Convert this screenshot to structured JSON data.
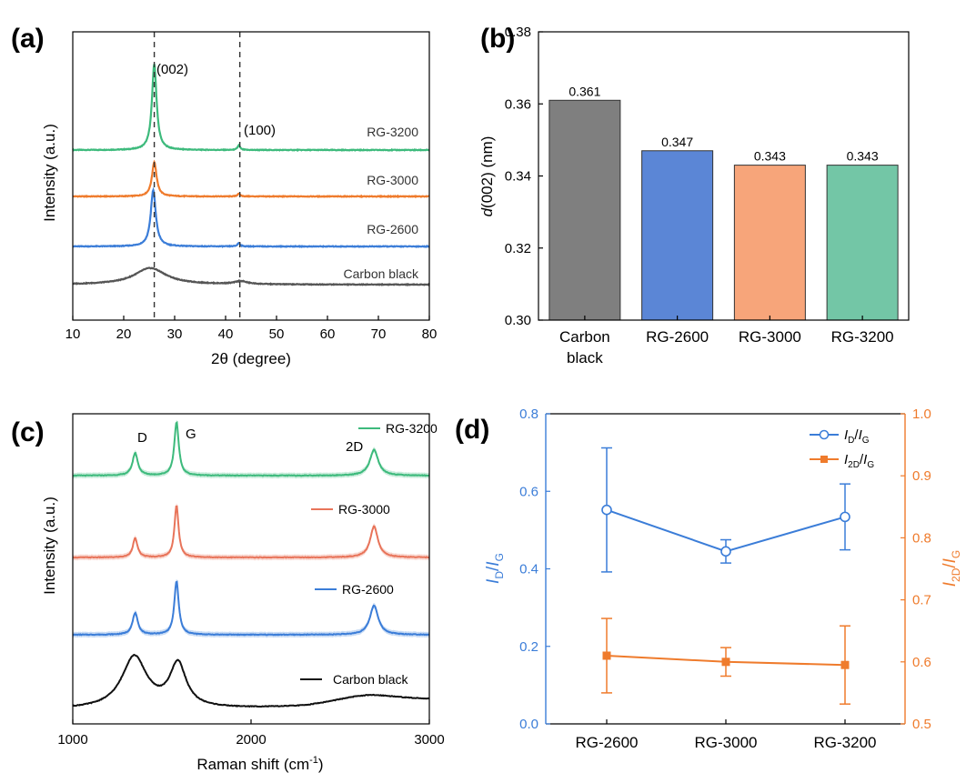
{
  "panels": {
    "a": {
      "label": "(a)",
      "chart_data": {
        "type": "line",
        "xlabel": "2θ (degree)",
        "ylabel": "Intensity (a.u.)",
        "xlim": [
          10,
          80
        ],
        "xticks": [
          10,
          20,
          30,
          40,
          50,
          60,
          70,
          80
        ],
        "reference_lines_x": [
          26.0,
          42.8
        ],
        "annotations": [
          {
            "text": "(002)",
            "x": 26.0
          },
          {
            "text": "(100)",
            "x": 42.8
          }
        ],
        "series": [
          {
            "name": "RG-3200",
            "color": "#3dba7c",
            "offset": 3.0,
            "peaks": [
              {
                "x": 26.0,
                "h": 1.45,
                "w": 0.55
              },
              {
                "x": 42.6,
                "h": 0.08,
                "w": 0.3
              }
            ]
          },
          {
            "name": "RG-3000",
            "color": "#ef7b2c",
            "offset": 2.0,
            "peaks": [
              {
                "x": 26.0,
                "h": 0.58,
                "w": 0.55
              },
              {
                "x": 42.6,
                "h": 0.05,
                "w": 0.3
              }
            ]
          },
          {
            "name": "RG-2600",
            "color": "#3b7dd8",
            "offset": 1.0,
            "peaks": [
              {
                "x": 25.8,
                "h": 0.95,
                "w": 0.6
              },
              {
                "x": 42.6,
                "h": 0.06,
                "w": 0.3
              }
            ]
          },
          {
            "name": "Carbon black",
            "color": "#555555",
            "offset": 0.0,
            "peaks": [
              {
                "x": 25.2,
                "h": 0.28,
                "w": 3.8
              },
              {
                "x": 43.0,
                "h": 0.05,
                "w": 1.5
              }
            ]
          }
        ]
      }
    },
    "b": {
      "label": "(b)",
      "chart_data": {
        "type": "bar",
        "categories": [
          "Carbon black",
          "RG-2600",
          "RG-3000",
          "RG-3200"
        ],
        "category_lines": [
          [
            "Carbon",
            "black"
          ],
          [
            "RG-2600"
          ],
          [
            "RG-3000"
          ],
          [
            "RG-3200"
          ]
        ],
        "values": [
          0.361,
          0.347,
          0.343,
          0.343
        ],
        "value_labels": [
          "0.361",
          "0.347",
          "0.343",
          "0.343"
        ],
        "colors": [
          "#7f7f7f",
          "#5b86d6",
          "#f7a57a",
          "#73c6a6"
        ],
        "ylabel_italic": "d",
        "ylabel_rest": "(002) (nm)",
        "ylim": [
          0.3,
          0.38
        ],
        "yticks": [
          0.3,
          0.32,
          0.34,
          0.36,
          0.38
        ],
        "ytick_labels": [
          "0.30",
          "0.32",
          "0.34",
          "0.36",
          "0.38"
        ]
      }
    },
    "c": {
      "label": "(c)",
      "chart_data": {
        "type": "line",
        "xlabel_main": "Raman shift (cm",
        "xlabel_sup": "-1",
        "xlabel_end": ")",
        "ylabel": "Intensity (a.u.)",
        "xlim": [
          1000,
          3000
        ],
        "xticks": [
          1000,
          2000,
          3000
        ],
        "annotations": [
          {
            "text": "D",
            "x": 1350
          },
          {
            "text": "G",
            "x": 1580
          },
          {
            "text": "2D",
            "x": 2690
          }
        ],
        "series": [
          {
            "name": "RG-3200",
            "color": "#3dba7c",
            "offset": 3.05,
            "peaks": [
              {
                "x": 1350,
                "h": 0.26,
                "w": 18
              },
              {
                "x": 1582,
                "h": 0.62,
                "w": 15
              },
              {
                "x": 2690,
                "h": 0.3,
                "w": 28
              }
            ]
          },
          {
            "name": "RG-3000",
            "color": "#e8745a",
            "offset": 2.05,
            "peaks": [
              {
                "x": 1350,
                "h": 0.22,
                "w": 16
              },
              {
                "x": 1582,
                "h": 0.6,
                "w": 14
              },
              {
                "x": 2690,
                "h": 0.36,
                "w": 26
              }
            ]
          },
          {
            "name": "RG-2600",
            "color": "#3b7dd8",
            "offset": 1.05,
            "peaks": [
              {
                "x": 1350,
                "h": 0.25,
                "w": 18
              },
              {
                "x": 1582,
                "h": 0.62,
                "w": 15
              },
              {
                "x": 2690,
                "h": 0.34,
                "w": 28
              }
            ]
          },
          {
            "name": "Carbon black",
            "color": "#111111",
            "offset": 0.0,
            "peaks": [
              {
                "x": 1345,
                "h": 0.6,
                "w": 85
              },
              {
                "x": 1590,
                "h": 0.5,
                "w": 55
              },
              {
                "x": 2650,
                "h": 0.12,
                "w": 260
              }
            ]
          }
        ]
      }
    },
    "d": {
      "label": "(d)",
      "chart_data": {
        "type": "line",
        "categories": [
          "RG-2600",
          "RG-3000",
          "RG-3200"
        ],
        "left_axis": {
          "ylim": [
            0.0,
            0.8
          ],
          "yticks": [
            0.0,
            0.2,
            0.4,
            0.6,
            0.8
          ],
          "ytick_labels": [
            "0.0",
            "0.2",
            "0.4",
            "0.6",
            "0.8"
          ],
          "color": "#3b7dd8"
        },
        "right_axis": {
          "ylim": [
            0.5,
            1.0
          ],
          "yticks": [
            0.5,
            0.6,
            0.7,
            0.8,
            0.9,
            1.0
          ],
          "ytick_labels": [
            "0.5",
            "0.6",
            "0.7",
            "0.8",
            "0.9",
            "1.0"
          ],
          "color": "#ef7b2c"
        },
        "series": [
          {
            "name": "ID/IG",
            "axis": "left",
            "color": "#3b7dd8",
            "marker": "open-circle",
            "values": [
              0.552,
              0.445,
              0.534
            ],
            "errors": [
              0.16,
              0.03,
              0.085
            ]
          },
          {
            "name": "I2D/IG",
            "axis": "right",
            "color": "#ef7b2c",
            "marker": "square",
            "values": [
              0.61,
              0.6,
              0.595
            ],
            "errors": [
              0.06,
              0.023,
              0.063
            ]
          }
        ]
      }
    }
  }
}
